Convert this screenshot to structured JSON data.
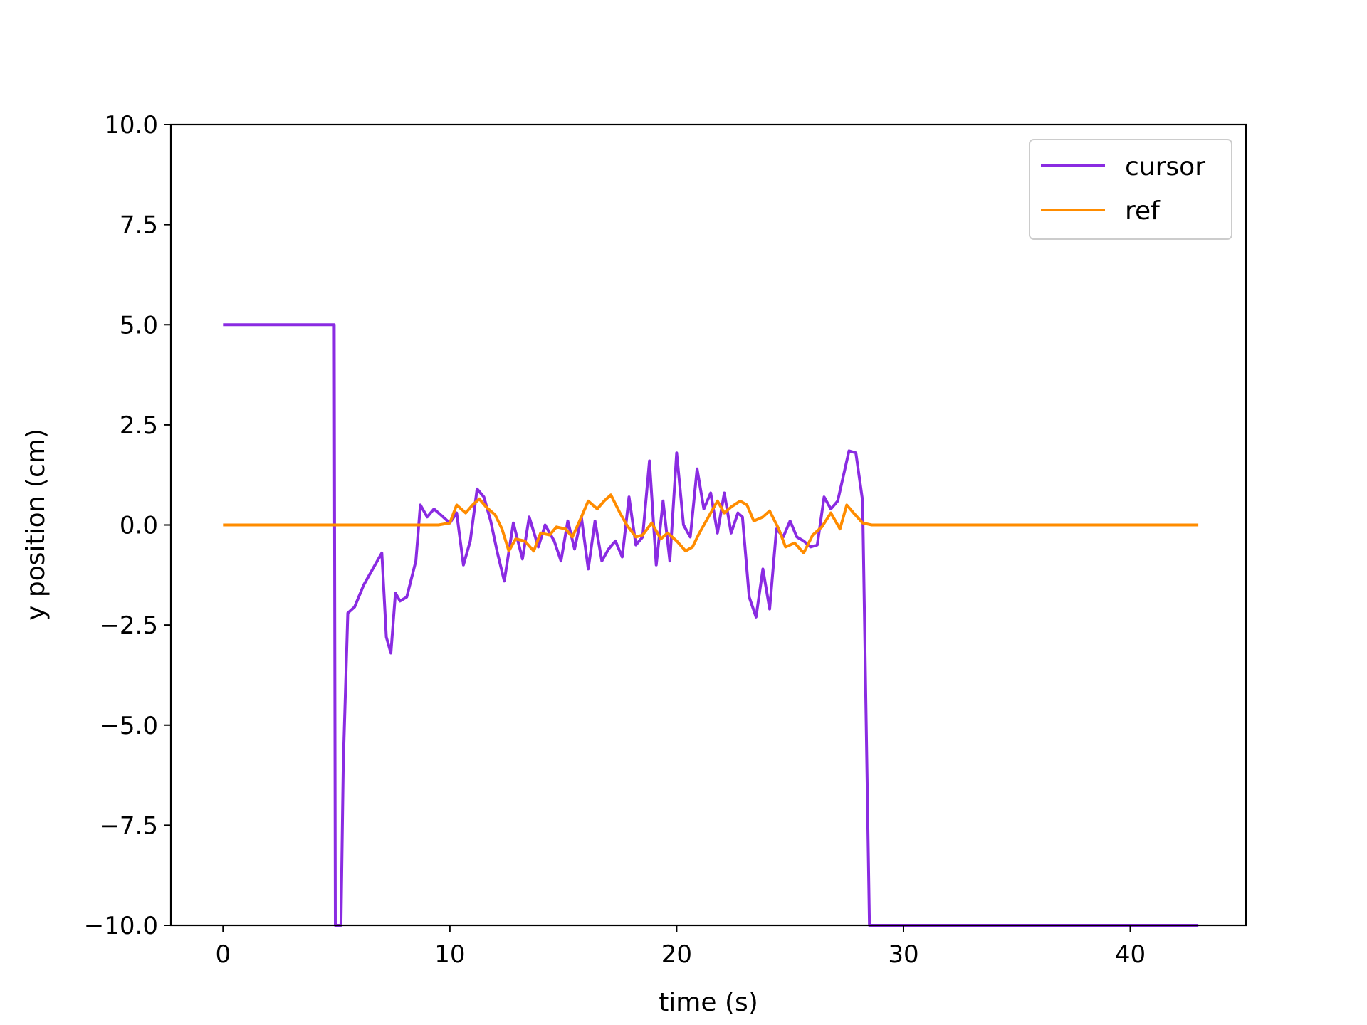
{
  "chart_data": {
    "type": "line",
    "xlabel": "time (s)",
    "ylabel": "y position (cm)",
    "xlim": [
      -2.3,
      45.1
    ],
    "ylim": [
      -10.0,
      10.0
    ],
    "xticks": [
      0,
      10,
      20,
      30,
      40
    ],
    "yticks": [
      10.0,
      7.5,
      5.0,
      2.5,
      0.0,
      -2.5,
      -5.0,
      -7.5,
      -10.0
    ],
    "xtick_labels": [
      "0",
      "10",
      "20",
      "30",
      "40"
    ],
    "ytick_labels": [
      "10.0",
      "7.5",
      "5.0",
      "2.5",
      "0.0",
      "−2.5",
      "−5.0",
      "−7.5",
      "−10.0"
    ],
    "legend_position": "top-right",
    "grid": false,
    "series": [
      {
        "name": "cursor",
        "color": "#8a2be2",
        "x": [
          0,
          4.9,
          4.95,
          5.0,
          5.2,
          5.3,
          5.5,
          5.8,
          6.2,
          6.8,
          7.0,
          7.2,
          7.4,
          7.6,
          7.8,
          8.1,
          8.5,
          8.7,
          9.0,
          9.3,
          9.6,
          10.0,
          10.3,
          10.6,
          10.9,
          11.2,
          11.5,
          11.8,
          12.1,
          12.4,
          12.8,
          13.2,
          13.5,
          13.9,
          14.2,
          14.6,
          14.9,
          15.2,
          15.5,
          15.8,
          16.1,
          16.4,
          16.7,
          17.0,
          17.3,
          17.6,
          17.9,
          18.2,
          18.5,
          18.8,
          19.1,
          19.4,
          19.7,
          20.0,
          20.3,
          20.6,
          20.9,
          21.2,
          21.5,
          21.8,
          22.1,
          22.4,
          22.7,
          22.9,
          23.2,
          23.5,
          23.8,
          24.1,
          24.4,
          24.7,
          25.0,
          25.3,
          25.6,
          25.9,
          26.2,
          26.5,
          26.8,
          27.1,
          27.3,
          27.6,
          27.9,
          28.2,
          28.5,
          28.8,
          29.1,
          29.4,
          29.7,
          30.0,
          30.3,
          30.6,
          30.9,
          31.2,
          31.5,
          31.8,
          32.0,
          32.2,
          32.45,
          32.8,
          43.0
        ],
        "y": [
          5.0,
          5.0,
          -10.0,
          -10.0,
          -10.0,
          -6.0,
          -2.2,
          -2.05,
          -1.5,
          -0.9,
          -0.7,
          -2.8,
          -3.2,
          -1.7,
          -1.9,
          -1.8,
          -0.9,
          0.5,
          0.2,
          0.4,
          0.25,
          0.05,
          0.3,
          -1.0,
          -0.4,
          0.9,
          0.7,
          0.1,
          -0.7,
          -1.4,
          0.05,
          -0.85,
          0.2,
          -0.55,
          0.0,
          -0.4,
          -0.9,
          0.1,
          -0.6,
          0.2,
          -1.1,
          0.1,
          -0.9,
          -0.6,
          -0.4,
          -0.8,
          0.7,
          -0.5,
          -0.3,
          1.6,
          -1.0,
          0.6,
          -0.9,
          1.8,
          0.0,
          -0.3,
          1.4,
          0.4,
          0.8,
          -0.2,
          0.8,
          -0.2,
          0.3,
          0.2,
          -1.8,
          -2.3,
          -1.1,
          -2.1,
          -0.1,
          -0.3,
          0.1,
          -0.3,
          -0.4,
          -0.55,
          -0.5,
          0.7,
          0.4,
          0.6,
          1.1,
          1.85,
          1.8,
          0.6,
          -10.0,
          -10.0,
          -10.0,
          -10.0,
          -10.0,
          -10.0,
          -10.0,
          -10.0,
          -10.0,
          -10.0,
          -10.0,
          -10.0,
          -10.0,
          -10.0,
          -10.0,
          -10.0,
          -10.0
        ]
      },
      {
        "name": "ref",
        "color": "#ff8c00",
        "x": [
          0,
          9.5,
          10.0,
          10.3,
          10.7,
          11.0,
          11.3,
          11.6,
          12.0,
          12.3,
          12.6,
          12.9,
          13.3,
          13.7,
          14.0,
          14.4,
          14.7,
          15.1,
          15.4,
          15.8,
          16.1,
          16.5,
          16.8,
          17.1,
          17.5,
          17.8,
          18.2,
          18.5,
          18.9,
          19.3,
          19.6,
          20.0,
          20.4,
          20.7,
          21.0,
          21.4,
          21.8,
          22.1,
          22.4,
          22.8,
          23.1,
          23.4,
          23.8,
          24.1,
          24.5,
          24.8,
          25.2,
          25.6,
          26.0,
          26.4,
          26.8,
          27.2,
          27.5,
          27.8,
          28.2,
          28.6,
          29.0,
          29.4,
          29.7,
          30.0,
          30.4,
          30.8,
          31.2,
          31.6,
          32.0,
          43.0
        ],
        "y": [
          0.0,
          0.0,
          0.05,
          0.5,
          0.3,
          0.5,
          0.65,
          0.45,
          0.25,
          -0.1,
          -0.65,
          -0.35,
          -0.4,
          -0.65,
          -0.2,
          -0.25,
          -0.05,
          -0.1,
          -0.3,
          0.2,
          0.6,
          0.4,
          0.6,
          0.75,
          0.3,
          0.0,
          -0.3,
          -0.25,
          0.05,
          -0.35,
          -0.2,
          -0.4,
          -0.65,
          -0.55,
          -0.2,
          0.2,
          0.6,
          0.3,
          0.45,
          0.6,
          0.5,
          0.1,
          0.2,
          0.35,
          -0.1,
          -0.55,
          -0.45,
          -0.7,
          -0.25,
          -0.05,
          0.3,
          -0.1,
          0.5,
          0.3,
          0.05,
          0.0,
          0.0,
          0.0,
          0.0,
          0.0,
          0.0,
          0.0,
          0.0,
          0.0,
          0.0,
          0.0
        ]
      }
    ]
  }
}
